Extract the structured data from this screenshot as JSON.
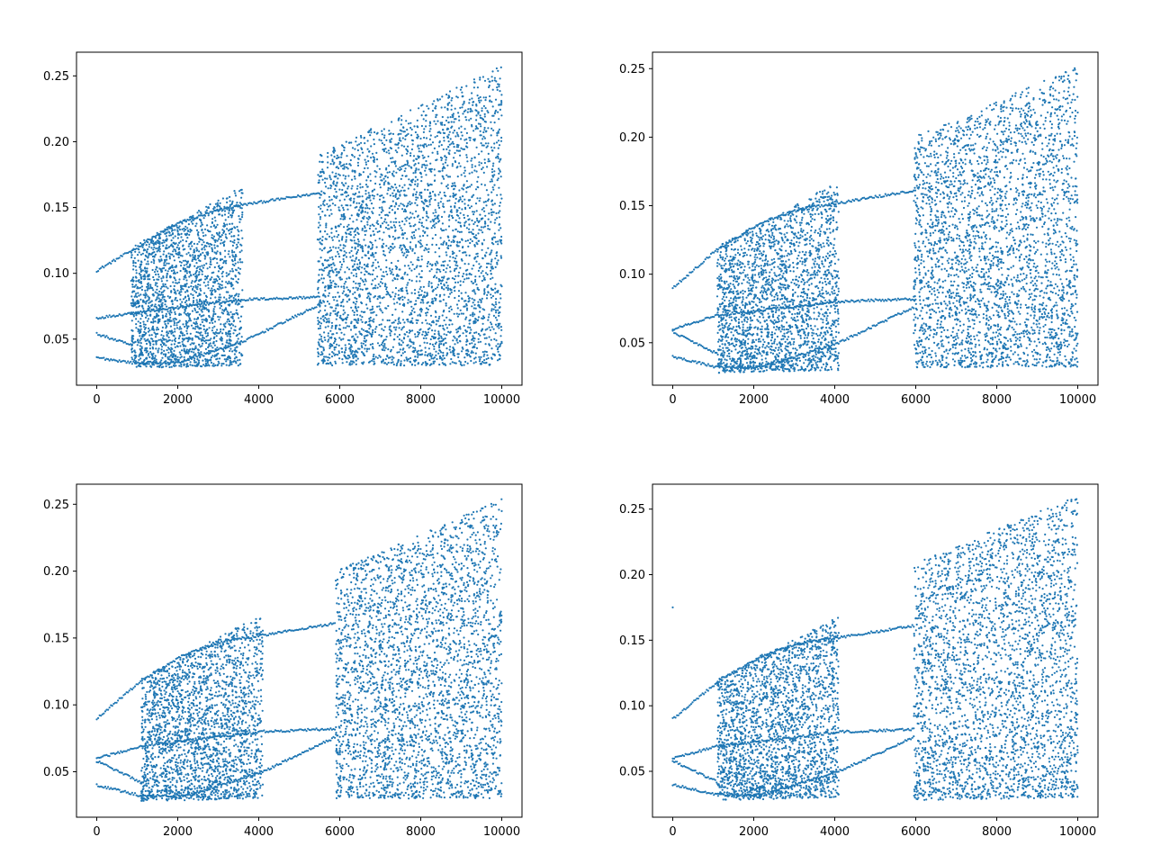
{
  "figure": {
    "background": "#ffffff",
    "marker_color": "#1f77b4",
    "layout": "2x2 grid of scatter subplots"
  },
  "chart_data": [
    {
      "type": "scatter",
      "title": "",
      "xlabel": "",
      "ylabel": "",
      "xlim": [
        -500,
        10500
      ],
      "ylim": [
        0.015,
        0.268
      ],
      "xticks": [
        0,
        2000,
        4000,
        6000,
        8000,
        10000
      ],
      "xtick_labels": [
        "0",
        "2000",
        "4000",
        "6000",
        "8000",
        "10000"
      ],
      "yticks": [
        0.05,
        0.1,
        0.15,
        0.2,
        0.25
      ],
      "ytick_labels": [
        "0.05",
        "0.10",
        "0.15",
        "0.20",
        "0.25"
      ],
      "grid": false,
      "series": [
        {
          "values_from": "branches",
          "branches": [
            {
              "x": [
                0,
                900,
                2000,
                3000,
                3600,
                5500
              ],
              "y": [
                0.102,
                0.118,
                0.138,
                0.148,
                0.152,
                0.161
              ]
            },
            {
              "x": [
                0,
                900,
                3600,
                5500
              ],
              "y": [
                0.066,
                0.07,
                0.08,
                0.082
              ]
            },
            {
              "x": [
                0,
                900
              ],
              "y": [
                0.054,
                0.045
              ]
            },
            {
              "x": [
                0,
                900,
                2000,
                3600,
                5500
              ],
              "y": [
                0.036,
                0.032,
                0.032,
                0.048,
                0.076
              ]
            }
          ]
        },
        {
          "values_from": "chaotic_bands",
          "bands": [
            {
              "x": [
                850,
                3600
              ],
              "ylow": [
                0.028,
                0.03
              ],
              "yhigh": [
                0.12,
                0.166
              ]
            },
            {
              "x": [
                5450,
                10000
              ],
              "ylow": [
                0.03,
                0.03
              ],
              "yhigh": [
                0.19,
                0.258
              ]
            }
          ]
        }
      ]
    },
    {
      "type": "scatter",
      "title": "",
      "xlabel": "",
      "ylabel": "",
      "xlim": [
        -500,
        10500
      ],
      "ylim": [
        0.019,
        0.262
      ],
      "xticks": [
        0,
        2000,
        4000,
        6000,
        8000,
        10000
      ],
      "xtick_labels": [
        "0",
        "2000",
        "4000",
        "6000",
        "8000",
        "10000"
      ],
      "yticks": [
        0.05,
        0.1,
        0.15,
        0.2,
        0.25
      ],
      "ytick_labels": [
        "0.05",
        "0.10",
        "0.15",
        "0.20",
        "0.25"
      ],
      "grid": false,
      "series": [
        {
          "values_from": "branches",
          "branches": [
            {
              "x": [
                0,
                1100,
                2200,
                3200,
                4100,
                5950
              ],
              "y": [
                0.09,
                0.118,
                0.138,
                0.148,
                0.152,
                0.161
              ]
            },
            {
              "x": [
                0,
                1100,
                4100,
                5950
              ],
              "y": [
                0.06,
                0.07,
                0.08,
                0.082
              ]
            },
            {
              "x": [
                0,
                1100
              ],
              "y": [
                0.058,
                0.042
              ]
            },
            {
              "x": [
                0,
                1100,
                2200,
                4100,
                5950
              ],
              "y": [
                0.04,
                0.032,
                0.032,
                0.05,
                0.076
              ]
            }
          ]
        },
        {
          "values_from": "chaotic_bands",
          "bands": [
            {
              "x": [
                1100,
                4100
              ],
              "ylow": [
                0.028,
                0.03
              ],
              "yhigh": [
                0.12,
                0.168
              ]
            },
            {
              "x": [
                5950,
                10000
              ],
              "ylow": [
                0.032,
                0.032
              ],
              "yhigh": [
                0.2,
                0.252
              ]
            }
          ]
        }
      ]
    },
    {
      "type": "scatter",
      "title": "",
      "xlabel": "",
      "ylabel": "",
      "xlim": [
        -500,
        10500
      ],
      "ylim": [
        0.016,
        0.265
      ],
      "xticks": [
        0,
        2000,
        4000,
        6000,
        8000,
        10000
      ],
      "xtick_labels": [
        "0",
        "2000",
        "4000",
        "6000",
        "8000",
        "10000"
      ],
      "yticks": [
        0.05,
        0.1,
        0.15,
        0.2,
        0.25
      ],
      "ytick_labels": [
        "0.05",
        "0.10",
        "0.15",
        "0.20",
        "0.25"
      ],
      "grid": false,
      "series": [
        {
          "values_from": "branches",
          "branches": [
            {
              "x": [
                0,
                1100,
                2200,
                3200,
                4100,
                5900
              ],
              "y": [
                0.09,
                0.118,
                0.138,
                0.148,
                0.152,
                0.161
              ]
            },
            {
              "x": [
                0,
                1100,
                4100,
                5900
              ],
              "y": [
                0.06,
                0.069,
                0.08,
                0.082
              ]
            },
            {
              "x": [
                0,
                1100
              ],
              "y": [
                0.058,
                0.042
              ]
            },
            {
              "x": [
                0,
                1100,
                2200,
                4100,
                5900
              ],
              "y": [
                0.04,
                0.032,
                0.032,
                0.05,
                0.076
              ]
            }
          ]
        },
        {
          "values_from": "chaotic_bands",
          "bands": [
            {
              "x": [
                1100,
                4100
              ],
              "ylow": [
                0.028,
                0.03
              ],
              "yhigh": [
                0.12,
                0.168
              ]
            },
            {
              "x": [
                5900,
                10000
              ],
              "ylow": [
                0.03,
                0.03
              ],
              "yhigh": [
                0.2,
                0.254
              ]
            }
          ]
        }
      ]
    },
    {
      "type": "scatter",
      "title": "",
      "xlabel": "",
      "ylabel": "",
      "xlim": [
        -500,
        10500
      ],
      "ylim": [
        0.015,
        0.269
      ],
      "xticks": [
        0,
        2000,
        4000,
        6000,
        8000,
        10000
      ],
      "xtick_labels": [
        "0",
        "2000",
        "4000",
        "6000",
        "8000",
        "10000"
      ],
      "yticks": [
        0.05,
        0.1,
        0.15,
        0.2,
        0.25
      ],
      "ytick_labels": [
        "0.05",
        "0.10",
        "0.15",
        "0.20",
        "0.25"
      ],
      "grid": false,
      "series": [
        {
          "values_from": "branches",
          "branches": [
            {
              "x": [
                0,
                1100,
                2200,
                3200,
                4100,
                5950
              ],
              "y": [
                0.09,
                0.118,
                0.138,
                0.148,
                0.152,
                0.161
              ]
            },
            {
              "x": [
                0,
                1100,
                4100,
                5950
              ],
              "y": [
                0.06,
                0.069,
                0.08,
                0.082
              ]
            },
            {
              "x": [
                0,
                1100
              ],
              "y": [
                0.058,
                0.042
              ]
            },
            {
              "x": [
                0,
                1100,
                2200,
                4100,
                5950
              ],
              "y": [
                0.04,
                0.032,
                0.032,
                0.05,
                0.076
              ]
            }
          ]
        },
        {
          "values_from": "chaotic_bands",
          "bands": [
            {
              "x": [
                1100,
                4100
              ],
              "ylow": [
                0.028,
                0.03
              ],
              "yhigh": [
                0.12,
                0.168
              ]
            },
            {
              "x": [
                5950,
                10000
              ],
              "ylow": [
                0.028,
                0.03
              ],
              "yhigh": [
                0.21,
                0.26
              ]
            }
          ]
        },
        {
          "values_from": "outliers",
          "points": [
            {
              "x": 0,
              "y": 0.175
            }
          ]
        }
      ]
    }
  ]
}
